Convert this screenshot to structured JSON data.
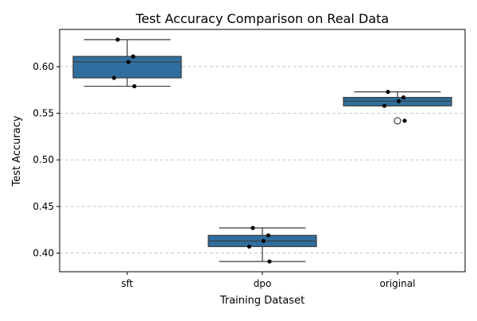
{
  "chart_data": {
    "type": "box",
    "title": "Test Accuracy Comparison on Real Data",
    "xlabel": "Training Dataset",
    "ylabel": "Test Accuracy",
    "categories": [
      "sft",
      "dpo",
      "original"
    ],
    "ylim": [
      0.38,
      0.64
    ],
    "yticks": [
      "0.40",
      "0.45",
      "0.50",
      "0.55",
      "0.60"
    ],
    "grid": "horizontal dashed",
    "box_color": "#2f6f9f",
    "boxes": [
      {
        "category": "sft",
        "whisker_low": 0.579,
        "q1": 0.588,
        "median": 0.605,
        "q3": 0.611,
        "whisker_high": 0.629,
        "points": [
          0.629,
          0.611,
          0.605,
          0.588,
          0.579
        ],
        "outliers": []
      },
      {
        "category": "dpo",
        "whisker_low": 0.391,
        "q1": 0.407,
        "median": 0.413,
        "q3": 0.419,
        "whisker_high": 0.427,
        "points": [
          0.427,
          0.419,
          0.413,
          0.407,
          0.391
        ],
        "outliers": []
      },
      {
        "category": "original",
        "whisker_low": 0.558,
        "q1": 0.558,
        "median": 0.563,
        "q3": 0.567,
        "whisker_high": 0.573,
        "points": [
          0.573,
          0.567,
          0.563,
          0.558,
          0.542
        ],
        "outliers": [
          0.542
        ]
      }
    ]
  }
}
